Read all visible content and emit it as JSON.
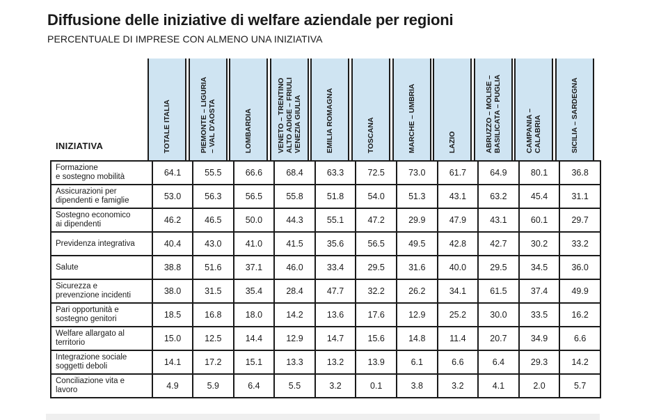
{
  "title": "Diffusione delle iniziative di welfare aziendale per regioni",
  "subtitle": "PERCENTUALE DI IMPRESE CON ALMENO UNA INIZIATIVA",
  "row_header": "INIZIATIVA",
  "chart_data": {
    "type": "table",
    "columns": [
      [
        "TOTALE ITALIA"
      ],
      [
        "PIEMONTE – LIGURIA",
        "– VAL D'AOSTA"
      ],
      [
        "LOMBARDIA"
      ],
      [
        "VENETO – TRENTINO",
        "ALTO ADIGE – FRIULI",
        "VENEZIA GIULIA"
      ],
      [
        "EMILIA ROMAGNA"
      ],
      [
        "TOSCANA"
      ],
      [
        "MARCHE – UMBRIA"
      ],
      [
        "LAZIO"
      ],
      [
        "ABRUZZO – MOLISE –",
        "BASILICATA – PUGLIA"
      ],
      [
        "CAMPANIA –",
        "CALABRIA"
      ],
      [
        "SICILIA – SARDEGNA"
      ]
    ],
    "rows": [
      {
        "label": [
          "Formazione",
          "e sostegno mobilità"
        ],
        "values": [
          "64.1",
          "55.5",
          "66.6",
          "68.4",
          "63.3",
          "72.5",
          "73.0",
          "61.7",
          "64.9",
          "80.1",
          "36.8"
        ]
      },
      {
        "label": [
          "Assicurazioni per",
          "dipendenti e famiglie"
        ],
        "values": [
          "53.0",
          "56.3",
          "56.5",
          "55.8",
          "51.8",
          "54.0",
          "51.3",
          "43.1",
          "63.2",
          "45.4",
          "31.1"
        ]
      },
      {
        "label": [
          "Sostegno economico",
          "ai dipendenti"
        ],
        "values": [
          "46.2",
          "46.5",
          "50.0",
          "44.3",
          "55.1",
          "47.2",
          "29.9",
          "47.9",
          "43.1",
          "60.1",
          "29.7"
        ]
      },
      {
        "label": [
          "Previdenza integrativa"
        ],
        "values": [
          "40.4",
          "43.0",
          "41.0",
          "41.5",
          "35.6",
          "56.5",
          "49.5",
          "42.8",
          "42.7",
          "30.2",
          "33.2"
        ]
      },
      {
        "label": [
          "Salute"
        ],
        "values": [
          "38.8",
          "51.6",
          "37.1",
          "46.0",
          "33.4",
          "29.5",
          "31.6",
          "40.0",
          "29.5",
          "34.5",
          "36.0"
        ]
      },
      {
        "label": [
          "Sicurezza e",
          "prevenzione incidenti"
        ],
        "values": [
          "38.0",
          "31.5",
          "35.4",
          "28.4",
          "47.7",
          "32.2",
          "26.2",
          "34.1",
          "61.5",
          "37.4",
          "49.9"
        ]
      },
      {
        "label": [
          "Pari opportunità e",
          "sostegno genitori"
        ],
        "values": [
          "18.5",
          "16.8",
          "18.0",
          "14.2",
          "13.6",
          "17.6",
          "12.9",
          "25.2",
          "30.0",
          "33.5",
          "16.2"
        ]
      },
      {
        "label": [
          "Welfare allargato al",
          "territorio"
        ],
        "values": [
          "15.0",
          "12.5",
          "14.4",
          "12.9",
          "14.7",
          "15.6",
          "14.8",
          "11.4",
          "20.7",
          "34.9",
          "6.6"
        ]
      },
      {
        "label": [
          "Integrazione sociale",
          "soggetti deboli"
        ],
        "values": [
          "14.1",
          "17.2",
          "15.1",
          "13.3",
          "13.2",
          "13.9",
          "6.1",
          "6.6",
          "6.4",
          "29.3",
          "14.2"
        ]
      },
      {
        "label": [
          "Conciliazione vita e",
          "lavoro"
        ],
        "values": [
          "4.9",
          "5.9",
          "6.4",
          "5.5",
          "3.2",
          "0.1",
          "3.8",
          "3.2",
          "4.1",
          "2.0",
          "5.7"
        ]
      }
    ]
  },
  "colors": {
    "header_bg": "#cfe4f2",
    "border": "#1a1a1a",
    "band": "#efefef"
  }
}
